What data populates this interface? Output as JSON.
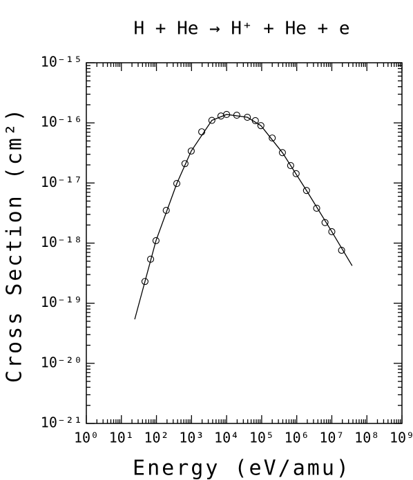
{
  "chart_data": {
    "type": "scatter",
    "title": "H + He → H⁺ + He + e",
    "x_label": "Energy (eV/amu)",
    "y_label": "Cross Section (cm²)",
    "x_scale": "log",
    "y_scale": "log",
    "xlim": [
      1,
      1000000000
    ],
    "ylim": [
      1e-21,
      1e-15
    ],
    "xticks": [
      {
        "value": 1,
        "label": "10⁰"
      },
      {
        "value": 10,
        "label": "10¹"
      },
      {
        "value": 100,
        "label": "10²"
      },
      {
        "value": 1000,
        "label": "10³"
      },
      {
        "value": 10000,
        "label": "10⁴"
      },
      {
        "value": 100000,
        "label": "10⁵"
      },
      {
        "value": 1000000,
        "label": "10⁶"
      },
      {
        "value": 10000000,
        "label": "10⁷"
      },
      {
        "value": 100000000,
        "label": "10⁸"
      },
      {
        "value": 1000000000,
        "label": "10⁹"
      }
    ],
    "yticks": [
      {
        "value": 1e-21,
        "label": "10⁻²¹"
      },
      {
        "value": 1e-20,
        "label": "10⁻²⁰"
      },
      {
        "value": 1e-19,
        "label": "10⁻¹⁹"
      },
      {
        "value": 1e-18,
        "label": "10⁻¹⁸"
      },
      {
        "value": 1e-17,
        "label": "10⁻¹⁷"
      },
      {
        "value": 1e-16,
        "label": "10⁻¹⁶"
      },
      {
        "value": 1e-15,
        "label": "10⁻¹⁵"
      }
    ],
    "series": [
      {
        "marker": "circle",
        "color": "#000000",
        "x": [
          47,
          68,
          97,
          190,
          380,
          650,
          980,
          1950,
          3800,
          6900,
          10000,
          19500,
          39000,
          66000,
          95000,
          200000,
          390000,
          670000,
          960000,
          1900000,
          3700000,
          6400000,
          10000000,
          19000000
        ],
        "values": [
          2.3e-19,
          5.4e-19,
          1.1e-18,
          3.5e-18,
          9.8e-18,
          2.1e-17,
          3.4e-17,
          7.1e-17,
          1.1e-16,
          1.3e-16,
          1.38e-16,
          1.34e-16,
          1.24e-16,
          1.09e-16,
          9e-17,
          5.6e-17,
          3.2e-17,
          1.95e-17,
          1.43e-17,
          7.5e-18,
          3.8e-18,
          2.2e-18,
          1.55e-18,
          7.6e-19
        ]
      },
      {
        "marker": "line",
        "color": "#000000",
        "x": [
          24,
          47,
          97,
          380,
          980,
          3800,
          10000,
          39000,
          95000,
          390000,
          1900000,
          10000000,
          38000000
        ],
        "values": [
          5.4e-20,
          2.3e-19,
          1.1e-18,
          9.8e-18,
          3.4e-17,
          1.1e-16,
          1.38e-16,
          1.24e-16,
          9e-17,
          3.2e-17,
          7.5e-18,
          1.55e-18,
          4.2e-19
        ]
      }
    ]
  }
}
